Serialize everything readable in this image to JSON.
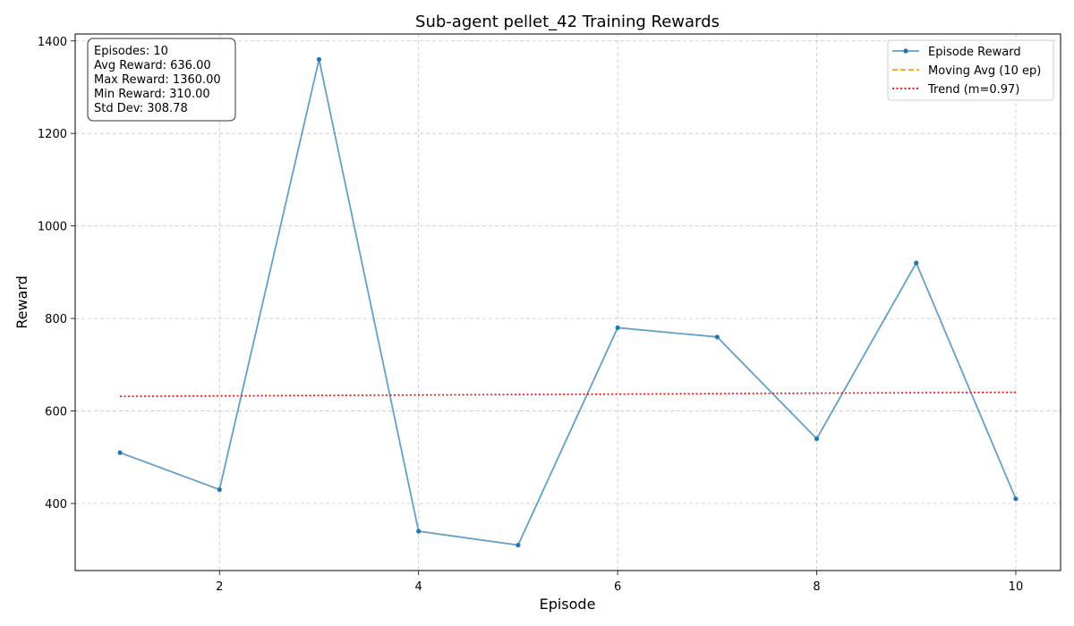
{
  "chart_data": {
    "type": "line",
    "title": "Sub-agent pellet_42 Training Rewards",
    "xlabel": "Episode",
    "ylabel": "Reward",
    "xlim": [
      0.55,
      10.45
    ],
    "ylim": [
      255,
      1415
    ],
    "x_ticks": [
      2,
      4,
      6,
      8,
      10
    ],
    "y_ticks": [
      400,
      600,
      800,
      1000,
      1200,
      1400
    ],
    "grid": true,
    "legend_position": "top-right",
    "series": [
      {
        "name": "Episode Reward",
        "style": "solid-markers",
        "color": "#1f77b4",
        "x": [
          1,
          2,
          3,
          4,
          5,
          6,
          7,
          8,
          9,
          10
        ],
        "values": [
          510,
          430,
          1360,
          340,
          310,
          780,
          760,
          540,
          920,
          410
        ]
      },
      {
        "name": "Moving Avg (10 ep)",
        "style": "dashed",
        "color": "#ff9f00",
        "x": [],
        "values": []
      },
      {
        "name": "Trend (m=0.97)",
        "style": "dotted",
        "color": "#ff0000",
        "x": [
          1,
          10
        ],
        "values": [
          631.6,
          640.4
        ]
      }
    ],
    "stats_box": [
      "Episodes: 10",
      "Avg Reward: 636.00",
      "Max Reward: 1360.00",
      "Min Reward: 310.00",
      "Std Dev: 308.78"
    ]
  }
}
